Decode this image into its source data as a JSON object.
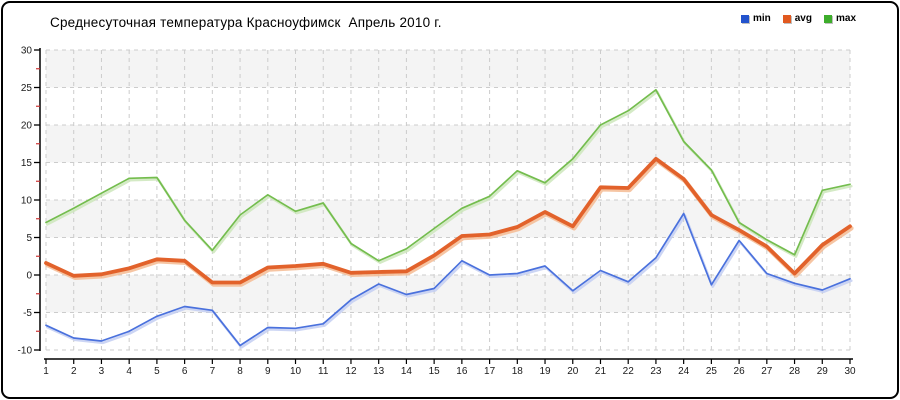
{
  "title": "Среднесуточная температура Красноуфимск  Апрель 2010 г.",
  "chart_data": {
    "type": "line",
    "title": "Среднесуточная температура Красноуфимск  Апрель 2010 г.",
    "xlabel": "",
    "ylabel": "",
    "x": [
      1,
      2,
      3,
      4,
      5,
      6,
      7,
      8,
      9,
      10,
      11,
      12,
      13,
      14,
      15,
      16,
      17,
      18,
      19,
      20,
      21,
      22,
      23,
      24,
      25,
      26,
      27,
      28,
      29,
      30
    ],
    "series": [
      {
        "name": "min",
        "color": "#4a71dd",
        "swatch": "#2353cd",
        "halo": "#c3cef2",
        "width": 1.7,
        "values": [
          -6.7,
          -8.4,
          -8.8,
          -7.5,
          -5.5,
          -4.2,
          -4.7,
          -9.4,
          -7.0,
          -7.1,
          -6.5,
          -3.3,
          -1.2,
          -2.6,
          -1.8,
          1.9,
          0.0,
          0.2,
          1.2,
          -2.1,
          0.6,
          -0.9,
          2.3,
          8.2,
          -1.3,
          4.6,
          0.2,
          -1.1,
          -2.0,
          -0.5
        ]
      },
      {
        "name": "avg",
        "color": "#e2622b",
        "swatch": "#e1591f",
        "halo": "#f5bb93",
        "width": 3.8,
        "values": [
          1.6,
          -0.1,
          0.1,
          0.9,
          2.1,
          1.9,
          -1.0,
          -1.0,
          1.0,
          1.2,
          1.5,
          0.3,
          0.4,
          0.5,
          2.6,
          5.2,
          5.4,
          6.4,
          8.4,
          6.5,
          11.7,
          11.6,
          15.5,
          12.8,
          8.0,
          6.0,
          3.8,
          0.2,
          4.0,
          6.5
        ]
      },
      {
        "name": "max",
        "color": "#74bd4e",
        "swatch": "#3dad2b",
        "halo": "#cde6bb",
        "width": 1.7,
        "values": [
          7.0,
          8.9,
          10.9,
          12.9,
          13.0,
          7.3,
          3.3,
          8.0,
          10.7,
          8.5,
          9.6,
          4.2,
          1.9,
          3.5,
          6.2,
          8.9,
          10.5,
          13.9,
          12.3,
          15.5,
          20.0,
          21.9,
          24.7,
          17.8,
          14.0,
          7.0,
          4.7,
          2.7,
          11.3,
          12.1
        ]
      }
    ],
    "ylim": [
      -10,
      30
    ],
    "yticks": [
      30,
      25,
      20,
      15,
      10,
      5,
      0,
      -5,
      -10
    ],
    "minor_tick_step": 2.5,
    "grid": "dashed",
    "legend_position": "top-right",
    "colors": {
      "band_fill": "#f4f4f4",
      "grid_color": "#cccccc",
      "axis_color": "#000000",
      "tick_label_color": "#1a1a1a",
      "minor_tick_color": "#cc3333"
    }
  }
}
